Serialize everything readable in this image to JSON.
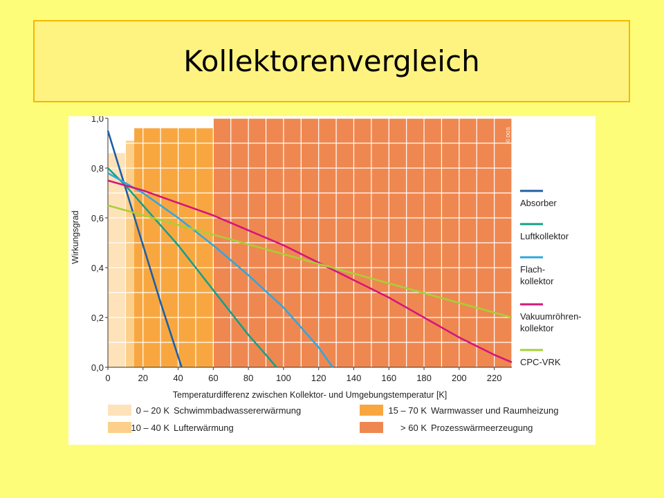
{
  "slide": {
    "title": "Kollektorenvergleich"
  },
  "chart_data": {
    "type": "line",
    "xlabel": "Temperaturdifferenz zwischen Kollektor- und Umgebungstemperatur [K]",
    "ylabel": "Wirkungsgrad",
    "xlim": [
      0,
      230
    ],
    "ylim": [
      0,
      1.0
    ],
    "x_ticks": [
      "0",
      "20",
      "40",
      "60",
      "80",
      "100",
      "120",
      "140",
      "160",
      "180",
      "200",
      "220"
    ],
    "y_ticks": [
      "0,0",
      "0,2",
      "0,4",
      "0,6",
      "0,8",
      "1,0"
    ],
    "grid": true,
    "copyright": "© DGS",
    "series": [
      {
        "name": "Absorber",
        "color": "#1d5fa6",
        "points": [
          [
            0,
            0.95
          ],
          [
            10,
            0.72
          ],
          [
            20,
            0.49
          ],
          [
            30,
            0.26
          ],
          [
            42,
            0.0
          ]
        ]
      },
      {
        "name": "Luftkollektor",
        "color": "#14a08a",
        "points": [
          [
            0,
            0.8
          ],
          [
            10,
            0.73
          ],
          [
            20,
            0.65
          ],
          [
            30,
            0.57
          ],
          [
            40,
            0.49
          ],
          [
            50,
            0.4
          ],
          [
            60,
            0.31
          ],
          [
            70,
            0.22
          ],
          [
            80,
            0.13
          ],
          [
            90,
            0.05
          ],
          [
            96,
            0.0
          ]
        ]
      },
      {
        "name": "Flachkollektor",
        "color": "#2fa7e0",
        "points": [
          [
            0,
            0.78
          ],
          [
            20,
            0.7
          ],
          [
            40,
            0.6
          ],
          [
            60,
            0.49
          ],
          [
            80,
            0.37
          ],
          [
            100,
            0.24
          ],
          [
            110,
            0.16
          ],
          [
            120,
            0.08
          ],
          [
            128,
            0.0
          ]
        ]
      },
      {
        "name": "Vakuumröhrenkollektor",
        "color": "#d4167c",
        "points": [
          [
            0,
            0.75
          ],
          [
            20,
            0.71
          ],
          [
            40,
            0.66
          ],
          [
            60,
            0.61
          ],
          [
            80,
            0.55
          ],
          [
            100,
            0.49
          ],
          [
            120,
            0.42
          ],
          [
            140,
            0.35
          ],
          [
            160,
            0.28
          ],
          [
            180,
            0.2
          ],
          [
            200,
            0.12
          ],
          [
            220,
            0.05
          ],
          [
            230,
            0.02
          ]
        ]
      },
      {
        "name": "CPC-VRK",
        "color": "#a8cf38",
        "points": [
          [
            0,
            0.65
          ],
          [
            230,
            0.2
          ]
        ]
      }
    ],
    "legend_labels": [
      {
        "lines": [
          "Absorber"
        ]
      },
      {
        "lines": [
          "Luftkollektor"
        ]
      },
      {
        "lines": [
          "Flach-",
          "kollektor"
        ]
      },
      {
        "lines": [
          "Vakuumröhren-",
          "kollektor"
        ]
      },
      {
        "lines": [
          "CPC-VRK"
        ]
      }
    ],
    "zones": [
      {
        "range": "0 – 20 K",
        "label": "Schwimmbadwassererwärmung",
        "color": "#fde2ba",
        "x_from": 0,
        "x_to": 20
      },
      {
        "range": "10 – 40 K",
        "label": "Lufterwärmung",
        "color": "#fccf8a",
        "x_from": 10,
        "x_to": 40
      },
      {
        "range": "15 – 70 K",
        "label": "Warmwasser und Raumheizung",
        "color": "#f8a740",
        "x_from": 15,
        "x_to": 70
      },
      {
        "range": "> 60 K",
        "label": "Prozesswärmeerzeugung",
        "color": "#ef8850",
        "x_from": 60,
        "x_to": 230
      }
    ]
  }
}
